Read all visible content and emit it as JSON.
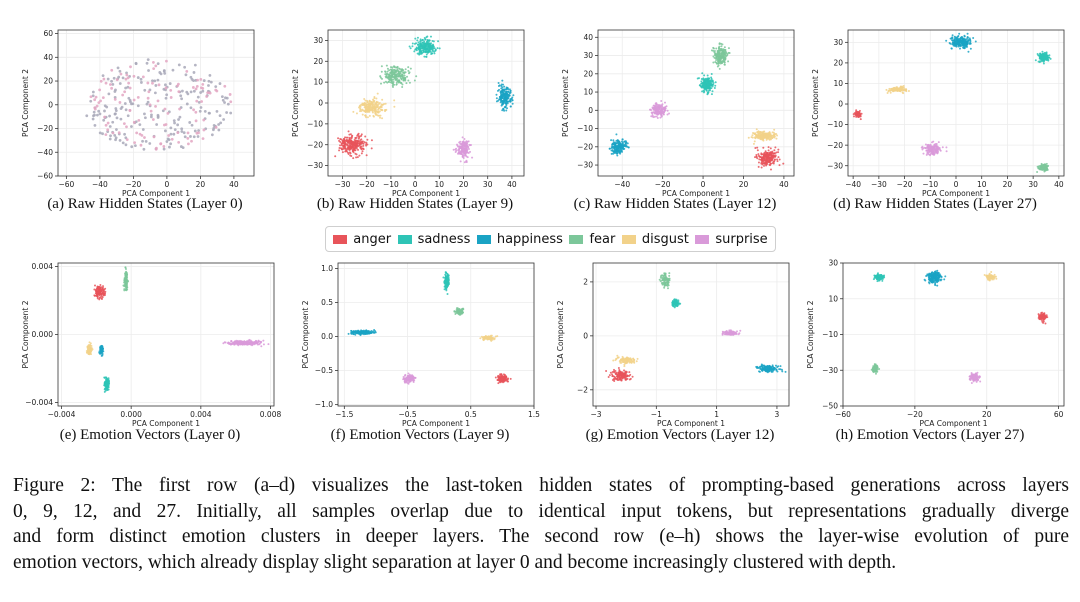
{
  "colors": {
    "anger": "#e8545a",
    "sadness": "#2ec4b6",
    "happiness": "#1aa3c4",
    "fear": "#7cc79a",
    "disgust": "#f2d28a",
    "surprise": "#d99ad9",
    "raw_gray": "#a8a8b8",
    "raw_pink": "#e3a6c2"
  },
  "legend": {
    "items": [
      {
        "label": "anger",
        "key": "anger"
      },
      {
        "label": "sadness",
        "key": "sadness"
      },
      {
        "label": "happiness",
        "key": "happiness"
      },
      {
        "label": "fear",
        "key": "fear"
      },
      {
        "label": "disgust",
        "key": "disgust"
      },
      {
        "label": "surprise",
        "key": "surprise"
      }
    ]
  },
  "chart_data": [
    {
      "type": "scatter",
      "id": "a",
      "title": "(a) Raw Hidden States (Layer 0)",
      "xlabel": "PCA Component 1",
      "ylabel": "PCA Component 2",
      "xlim": [
        -65,
        52
      ],
      "ylim": [
        -60,
        63
      ],
      "xticks": [
        {
          "v": -60,
          "t": "−60"
        },
        {
          "v": -40,
          "t": "−40"
        },
        {
          "v": -20,
          "t": "−20"
        },
        {
          "v": 0,
          "t": "0"
        },
        {
          "v": 20,
          "t": "20"
        },
        {
          "v": 40,
          "t": "40"
        }
      ],
      "yticks": [
        {
          "v": -60,
          "t": "−60"
        },
        {
          "v": -40,
          "t": "−40"
        },
        {
          "v": -20,
          "t": "−20"
        },
        {
          "v": 0,
          "t": "0"
        },
        {
          "v": 20,
          "t": "20"
        },
        {
          "v": 40,
          "t": "40"
        },
        {
          "v": 60,
          "t": "60"
        }
      ],
      "clusters": [
        {
          "key": "raw_gray",
          "cx": -5,
          "cy": 0,
          "sx": 24,
          "sy": 20,
          "rot": 0,
          "n": 220
        },
        {
          "key": "raw_pink",
          "cx": -5,
          "cy": 0,
          "sx": 24,
          "sy": 20,
          "rot": 0,
          "n": 120
        }
      ]
    },
    {
      "type": "scatter",
      "id": "b",
      "title": "(b) Raw Hidden States (Layer 9)",
      "xlabel": "PCA Component 1",
      "ylabel": "PCA Component 2",
      "xlim": [
        -36,
        45
      ],
      "ylim": [
        -35,
        35
      ],
      "xticks": [
        {
          "v": -30,
          "t": "−30"
        },
        {
          "v": -20,
          "t": "−20"
        },
        {
          "v": -10,
          "t": "−10"
        },
        {
          "v": 0,
          "t": "0"
        },
        {
          "v": 10,
          "t": "10"
        },
        {
          "v": 20,
          "t": "20"
        },
        {
          "v": 30,
          "t": "30"
        },
        {
          "v": 40,
          "t": "40"
        }
      ],
      "yticks": [
        {
          "v": -30,
          "t": "−30"
        },
        {
          "v": -20,
          "t": "−20"
        },
        {
          "v": -10,
          "t": "−10"
        },
        {
          "v": 0,
          "t": "0"
        },
        {
          "v": 10,
          "t": "10"
        },
        {
          "v": 20,
          "t": "20"
        },
        {
          "v": 30,
          "t": "30"
        }
      ],
      "clusters": [
        {
          "key": "anger",
          "cx": -26,
          "cy": -20,
          "sx": 5,
          "sy": 4.5,
          "rot": 0,
          "n": 260
        },
        {
          "key": "disgust",
          "cx": -18,
          "cy": -2,
          "sx": 5,
          "sy": 3.5,
          "rot": 0,
          "n": 220
        },
        {
          "key": "fear",
          "cx": -8,
          "cy": 13,
          "sx": 5,
          "sy": 4,
          "rot": 0,
          "n": 220
        },
        {
          "key": "sadness",
          "cx": 4,
          "cy": 27,
          "sx": 4,
          "sy": 3.5,
          "rot": 0,
          "n": 220
        },
        {
          "key": "happiness",
          "cx": 37,
          "cy": 3,
          "sx": 2.5,
          "sy": 5,
          "rot": 0,
          "n": 200
        },
        {
          "key": "surprise",
          "cx": 20,
          "cy": -22,
          "sx": 2.5,
          "sy": 4,
          "rot": 0,
          "n": 180
        }
      ]
    },
    {
      "type": "scatter",
      "id": "c",
      "title": "(c) Raw Hidden States (Layer 12)",
      "xlabel": "PCA Component 1",
      "ylabel": "PCA Component 2",
      "xlim": [
        -52,
        45
      ],
      "ylim": [
        -36,
        44
      ],
      "xticks": [
        {
          "v": -40,
          "t": "−40"
        },
        {
          "v": -20,
          "t": "−20"
        },
        {
          "v": 0,
          "t": "0"
        },
        {
          "v": 20,
          "t": "20"
        },
        {
          "v": 40,
          "t": "40"
        }
      ],
      "yticks": [
        {
          "v": -30,
          "t": "−30"
        },
        {
          "v": -20,
          "t": "−20"
        },
        {
          "v": -10,
          "t": "−10"
        },
        {
          "v": 0,
          "t": "0"
        },
        {
          "v": 10,
          "t": "10"
        },
        {
          "v": 20,
          "t": "20"
        },
        {
          "v": 30,
          "t": "30"
        },
        {
          "v": 40,
          "t": "40"
        }
      ],
      "clusters": [
        {
          "key": "happiness",
          "cx": -42,
          "cy": -20,
          "sx": 3.5,
          "sy": 3.5,
          "rot": 0,
          "n": 180
        },
        {
          "key": "surprise",
          "cx": -22,
          "cy": 0,
          "sx": 3.5,
          "sy": 3.5,
          "rot": 0,
          "n": 180
        },
        {
          "key": "sadness",
          "cx": 2,
          "cy": 14,
          "sx": 3,
          "sy": 3.5,
          "rot": 0,
          "n": 180
        },
        {
          "key": "fear",
          "cx": 9,
          "cy": 30,
          "sx": 3,
          "sy": 5,
          "rot": 0,
          "n": 200
        },
        {
          "key": "disgust",
          "cx": 30,
          "cy": -14,
          "sx": 5,
          "sy": 2,
          "rot": 0,
          "n": 200
        },
        {
          "key": "anger",
          "cx": 32,
          "cy": -26,
          "sx": 4,
          "sy": 4,
          "rot": 0,
          "n": 220
        }
      ]
    },
    {
      "type": "scatter",
      "id": "d",
      "title": "(d) Raw Hidden States (Layer 27)",
      "xlabel": "PCA Component 1",
      "ylabel": "PCA Component 2",
      "xlim": [
        -42,
        42
      ],
      "ylim": [
        -35,
        36
      ],
      "xticks": [
        {
          "v": -40,
          "t": "−40"
        },
        {
          "v": -30,
          "t": "−30"
        },
        {
          "v": -20,
          "t": "−20"
        },
        {
          "v": -10,
          "t": "−10"
        },
        {
          "v": 0,
          "t": "0"
        },
        {
          "v": 10,
          "t": "10"
        },
        {
          "v": 20,
          "t": "20"
        },
        {
          "v": 30,
          "t": "30"
        },
        {
          "v": 40,
          "t": "40"
        }
      ],
      "yticks": [
        {
          "v": -30,
          "t": "−30"
        },
        {
          "v": -20,
          "t": "−20"
        },
        {
          "v": -10,
          "t": "−10"
        },
        {
          "v": 0,
          "t": "0"
        },
        {
          "v": 10,
          "t": "10"
        },
        {
          "v": 20,
          "t": "20"
        },
        {
          "v": 30,
          "t": "30"
        }
      ],
      "clusters": [
        {
          "key": "anger",
          "cx": -38,
          "cy": -5,
          "sx": 1.2,
          "sy": 1.5,
          "rot": 0,
          "n": 80
        },
        {
          "key": "disgust",
          "cx": -23,
          "cy": 7,
          "sx": 3,
          "sy": 1.2,
          "rot": 0,
          "n": 120
        },
        {
          "key": "happiness",
          "cx": 2,
          "cy": 30,
          "sx": 4,
          "sy": 2.5,
          "rot": 0,
          "n": 220
        },
        {
          "key": "sadness",
          "cx": 34,
          "cy": 23,
          "sx": 2,
          "sy": 1.8,
          "rot": 0,
          "n": 150
        },
        {
          "key": "surprise",
          "cx": -9,
          "cy": -22,
          "sx": 3,
          "sy": 2.5,
          "rot": 0,
          "n": 160
        },
        {
          "key": "fear",
          "cx": 34,
          "cy": -31,
          "sx": 1.8,
          "sy": 1.4,
          "rot": 0,
          "n": 110
        }
      ]
    },
    {
      "type": "scatter",
      "id": "e",
      "title": "(e) Emotion Vectors (Layer 0)",
      "xlabel": "PCA Component 1",
      "ylabel": "PCA Component 2",
      "xlim": [
        -0.0042,
        0.0082
      ],
      "ylim": [
        -0.0042,
        0.0042
      ],
      "xticks": [
        {
          "v": -0.004,
          "t": "−0.004"
        },
        {
          "v": 0.0,
          "t": "0.000"
        },
        {
          "v": 0.004,
          "t": "0.004"
        },
        {
          "v": 0.008,
          "t": "0.008"
        }
      ],
      "yticks": [
        {
          "v": -0.004,
          "t": "−0.004"
        },
        {
          "v": 0.0,
          "t": "0.000"
        },
        {
          "v": 0.004,
          "t": "0.004"
        }
      ],
      "clusters": [
        {
          "key": "anger",
          "cx": -0.0018,
          "cy": 0.0025,
          "sx": 0.00025,
          "sy": 0.0003,
          "rot": 0,
          "n": 140
        },
        {
          "key": "fear",
          "cx": -0.0003,
          "cy": 0.0032,
          "sx": 8e-05,
          "sy": 0.0005,
          "rot": 0,
          "n": 140
        },
        {
          "key": "disgust",
          "cx": -0.0024,
          "cy": -0.0009,
          "sx": 0.0001,
          "sy": 0.00025,
          "rot": 0,
          "n": 100
        },
        {
          "key": "happiness",
          "cx": -0.0017,
          "cy": -0.0009,
          "sx": 8e-05,
          "sy": 0.00025,
          "rot": 0,
          "n": 100
        },
        {
          "key": "sadness",
          "cx": -0.0014,
          "cy": -0.0029,
          "sx": 0.00012,
          "sy": 0.0003,
          "rot": 0,
          "n": 130
        },
        {
          "key": "surprise",
          "cx": 0.0065,
          "cy": -0.0005,
          "sx": 0.0009,
          "sy": 0.00012,
          "rot": 0,
          "n": 220
        }
      ]
    },
    {
      "type": "scatter",
      "id": "f",
      "title": "(f) Emotion Vectors (Layer 9)",
      "xlabel": "PCA Component 1",
      "ylabel": "PCA Component 2",
      "xlim": [
        -1.6,
        1.5
      ],
      "ylim": [
        -1.02,
        1.08
      ],
      "xticks": [
        {
          "v": -1.5,
          "t": "−1.5"
        },
        {
          "v": -0.5,
          "t": "−0.5"
        },
        {
          "v": 0.5,
          "t": "0.5"
        },
        {
          "v": 1.5,
          "t": "1.5"
        }
      ],
      "yticks": [
        {
          "v": -1.0,
          "t": "−1.0"
        },
        {
          "v": -0.5,
          "t": "−0.5"
        },
        {
          "v": 0.0,
          "t": "0.0"
        },
        {
          "v": 0.5,
          "t": "0.5"
        },
        {
          "v": 1.0,
          "t": "1.0"
        }
      ],
      "clusters": [
        {
          "key": "sadness",
          "cx": 0.12,
          "cy": 0.82,
          "sx": 0.035,
          "sy": 0.1,
          "rot": 0,
          "n": 120
        },
        {
          "key": "fear",
          "cx": 0.32,
          "cy": 0.37,
          "sx": 0.06,
          "sy": 0.04,
          "rot": 0,
          "n": 90
        },
        {
          "key": "happiness",
          "cx": -1.22,
          "cy": 0.06,
          "sx": 0.17,
          "sy": 0.025,
          "rot": 0,
          "n": 160
        },
        {
          "key": "disgust",
          "cx": 0.78,
          "cy": -0.02,
          "sx": 0.09,
          "sy": 0.025,
          "rot": 0,
          "n": 90
        },
        {
          "key": "surprise",
          "cx": -0.47,
          "cy": -0.62,
          "sx": 0.08,
          "sy": 0.05,
          "rot": 0,
          "n": 110
        },
        {
          "key": "anger",
          "cx": 1.0,
          "cy": -0.62,
          "sx": 0.08,
          "sy": 0.05,
          "rot": 0,
          "n": 110
        }
      ]
    },
    {
      "type": "scatter",
      "id": "g",
      "title": "(g) Emotion Vectors (Layer 12)",
      "xlabel": "PCA Component 1",
      "ylabel": "PCA Component 2",
      "xlim": [
        -3.1,
        3.4
      ],
      "ylim": [
        -2.6,
        2.7
      ],
      "xticks": [
        {
          "v": -3,
          "t": "−3"
        },
        {
          "v": -1,
          "t": "−1"
        },
        {
          "v": 1,
          "t": "1"
        },
        {
          "v": 3,
          "t": "3"
        }
      ],
      "yticks": [
        {
          "v": -2,
          "t": "−2"
        },
        {
          "v": 0,
          "t": "0"
        },
        {
          "v": 2,
          "t": "2"
        }
      ],
      "clusters": [
        {
          "key": "fear",
          "cx": -0.7,
          "cy": 2.1,
          "sx": 0.12,
          "sy": 0.25,
          "rot": 0,
          "n": 100
        },
        {
          "key": "sadness",
          "cx": -0.35,
          "cy": 1.2,
          "sx": 0.1,
          "sy": 0.13,
          "rot": 0,
          "n": 80
        },
        {
          "key": "disgust",
          "cx": -2.0,
          "cy": -0.9,
          "sx": 0.3,
          "sy": 0.12,
          "rot": 0,
          "n": 110
        },
        {
          "key": "anger",
          "cx": -2.2,
          "cy": -1.45,
          "sx": 0.3,
          "sy": 0.18,
          "rot": 0,
          "n": 140
        },
        {
          "key": "surprise",
          "cx": 1.45,
          "cy": 0.1,
          "sx": 0.22,
          "sy": 0.08,
          "rot": 0,
          "n": 100
        },
        {
          "key": "happiness",
          "cx": 2.7,
          "cy": -1.2,
          "sx": 0.35,
          "sy": 0.12,
          "rot": 0,
          "n": 140
        }
      ]
    },
    {
      "type": "scatter",
      "id": "h",
      "title": "(h) Emotion Vectors (Layer 27)",
      "xlabel": "PCA Component 1",
      "ylabel": "PCA Component 2",
      "xlim": [
        -60,
        63
      ],
      "ylim": [
        -50,
        30
      ],
      "xticks": [
        {
          "v": -60,
          "t": "−60"
        },
        {
          "v": -20,
          "t": "−20"
        },
        {
          "v": 20,
          "t": "20"
        },
        {
          "v": 60,
          "t": "60"
        }
      ],
      "yticks": [
        {
          "v": -50,
          "t": "−50"
        },
        {
          "v": -30,
          "t": "−30"
        },
        {
          "v": -10,
          "t": "−10"
        },
        {
          "v": 10,
          "t": "10"
        },
        {
          "v": 30,
          "t": "30"
        }
      ],
      "clusters": [
        {
          "key": "sadness",
          "cx": -40,
          "cy": 22,
          "sx": 2.2,
          "sy": 1.6,
          "rot": 0,
          "n": 110
        },
        {
          "key": "happiness",
          "cx": -9,
          "cy": 22,
          "sx": 3.5,
          "sy": 2.8,
          "rot": 0,
          "n": 180
        },
        {
          "key": "disgust",
          "cx": 22,
          "cy": 22,
          "sx": 2.3,
          "sy": 1.4,
          "rot": 0,
          "n": 90
        },
        {
          "key": "anger",
          "cx": 51,
          "cy": 0,
          "sx": 2,
          "sy": 2,
          "rot": 0,
          "n": 100
        },
        {
          "key": "fear",
          "cx": -42,
          "cy": -29,
          "sx": 1.5,
          "sy": 1.8,
          "rot": 0,
          "n": 90
        },
        {
          "key": "surprise",
          "cx": 13,
          "cy": -34,
          "sx": 2.3,
          "sy": 2.2,
          "rot": 0,
          "n": 110
        }
      ]
    }
  ],
  "figure_caption_lines": [
    "Figure 2: The first row (a–d) visualizes the last-token hidden states of prompting-based generations across layers",
    "0, 9, 12, and 27. Initially, all samples overlap due to identical input tokens, but representations gradually diverge",
    "and form distinct emotion clusters in deeper layers. The second row (e–h) shows the layer-wise evolution of pure",
    "emotion vectors, which already display slight separation at layer 0 and become increasingly clustered with depth."
  ]
}
